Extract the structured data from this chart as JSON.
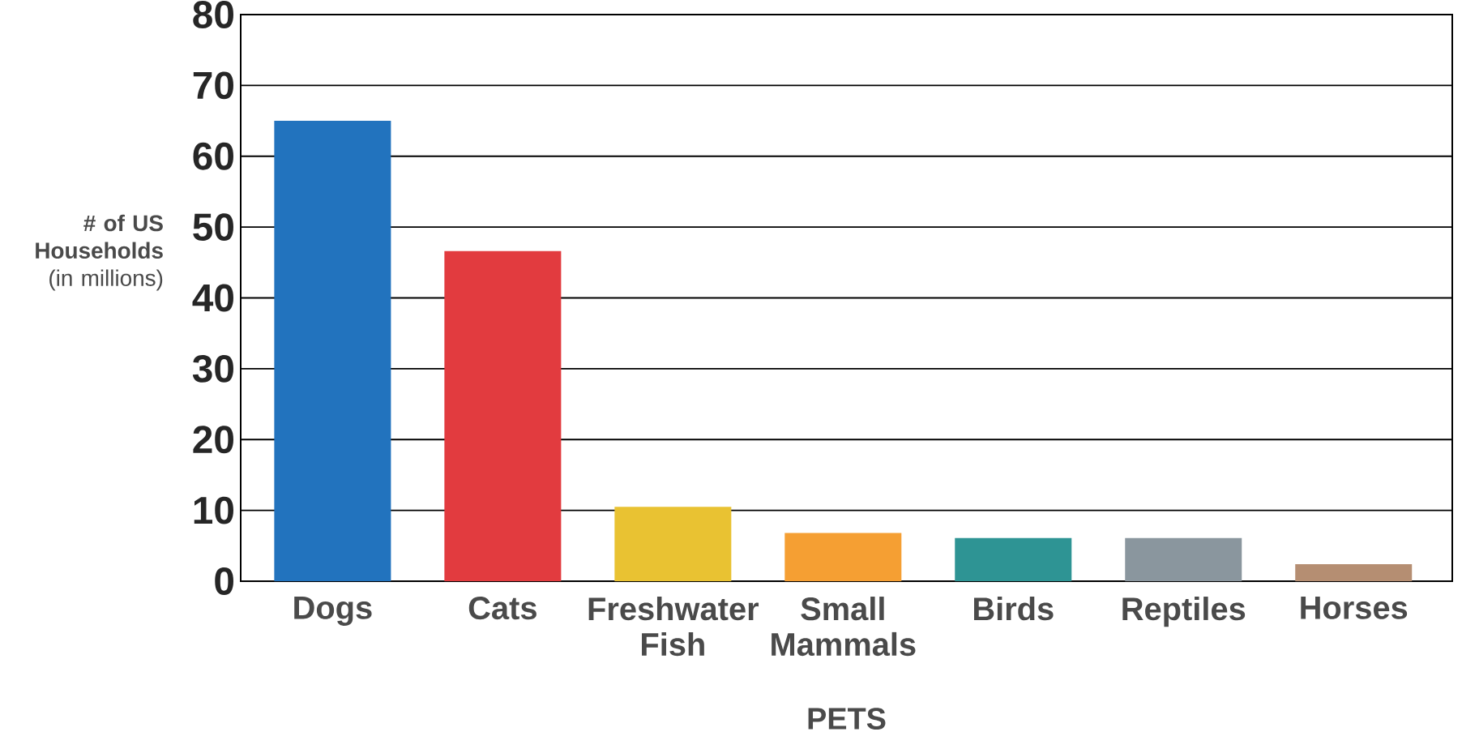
{
  "chart_data": {
    "type": "bar",
    "xlabel": "PETS",
    "ylabel": "**# of US Households** (in millions)",
    "categories": [
      "Dogs",
      "Cats",
      "Freshwater Fish",
      "Small Mammals",
      "Birds",
      "Reptiles",
      "Horses"
    ],
    "values": [
      65,
      46.6,
      10.5,
      6.8,
      6.1,
      6.1,
      2.4
    ],
    "colors": [
      "#2273be",
      "#e23b3f",
      "#e9c232",
      "#f59f33",
      "#2e9494",
      "#8a969e",
      "#b58e72"
    ],
    "ylim": [
      0,
      80
    ],
    "yticks": [
      0,
      10,
      20,
      30,
      40,
      50,
      60,
      70,
      80
    ],
    "grid": "y"
  }
}
